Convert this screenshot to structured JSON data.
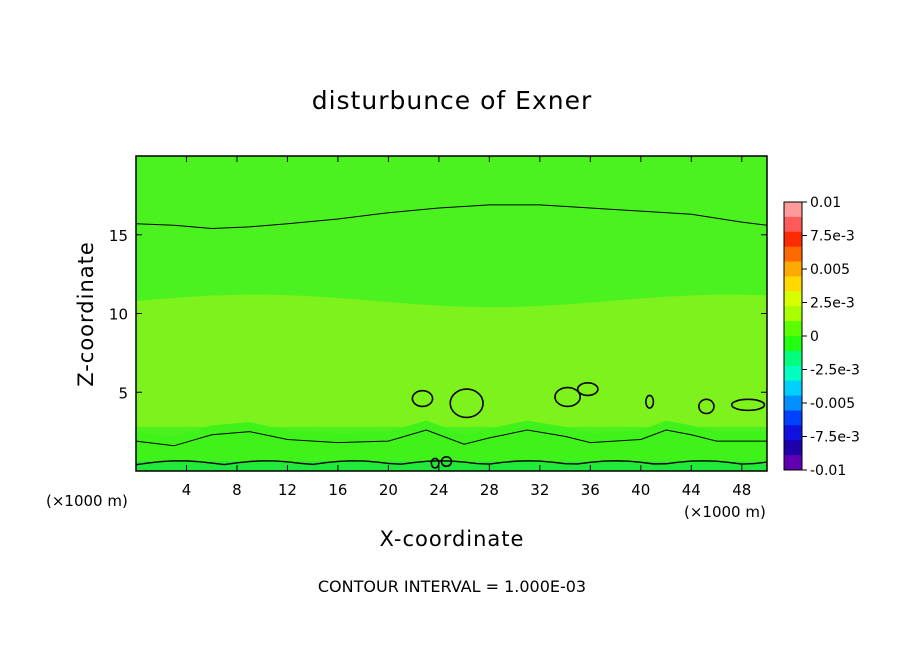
{
  "chart_data": {
    "type": "heatmap",
    "title": "disturbunce of Exner",
    "xlabel": "X-coordinate",
    "ylabel": "Z-coordinate",
    "x_unit_left": "(×1000 m)",
    "x_unit_right": "(×1000 m)",
    "footer": "CONTOUR INTERVAL = 1.000E-03",
    "xlim": [
      0,
      50
    ],
    "ylim": [
      0,
      20
    ],
    "x_ticks": [
      4,
      8,
      12,
      16,
      20,
      24,
      28,
      32,
      36,
      40,
      44,
      48
    ],
    "y_ticks": [
      5,
      10,
      15
    ],
    "colorbar": {
      "range": [
        -0.01,
        0.01
      ],
      "tick_labels": [
        "0.01",
        "7.5e-3",
        "0.005",
        "2.5e-3",
        "0",
        "-2.5e-3",
        "-0.005",
        "-7.5e-3",
        "-0.01"
      ],
      "tick_values": [
        0.01,
        0.0075,
        0.005,
        0.0025,
        0,
        -0.0025,
        -0.005,
        -0.0075,
        -0.01
      ],
      "colors": [
        "#ff9a9a",
        "#ff5a5a",
        "#ff2a00",
        "#ff6a00",
        "#ffaa00",
        "#ffd800",
        "#d8ff00",
        "#a8ff00",
        "#5aff00",
        "#22ff10",
        "#00ff7a",
        "#00ffc0",
        "#00d0ff",
        "#0090ff",
        "#0040ff",
        "#1010e0",
        "#2000a8",
        "#6000b0"
      ]
    },
    "fields": {
      "upper_band_color": "#4cf21f",
      "mid_band_color": "#7df21c",
      "lower_band_color": "#3ff21a",
      "bottom_color": "#22e83a"
    },
    "contours": [
      {
        "level": "upper",
        "points": [
          [
            0,
            15.7
          ],
          [
            3,
            15.6
          ],
          [
            6,
            15.4
          ],
          [
            9,
            15.5
          ],
          [
            12,
            15.7
          ],
          [
            16,
            16.0
          ],
          [
            20,
            16.4
          ],
          [
            24,
            16.7
          ],
          [
            28,
            16.9
          ],
          [
            32,
            16.9
          ],
          [
            36,
            16.7
          ],
          [
            40,
            16.5
          ],
          [
            44,
            16.3
          ],
          [
            48,
            15.8
          ],
          [
            50,
            15.6
          ]
        ]
      },
      {
        "level": "lower",
        "points": [
          [
            0,
            1.9
          ],
          [
            3,
            1.6
          ],
          [
            6,
            2.3
          ],
          [
            9,
            2.5
          ],
          [
            12,
            2.0
          ],
          [
            16,
            1.8
          ],
          [
            20,
            1.9
          ],
          [
            23,
            2.6
          ],
          [
            26,
            1.7
          ],
          [
            28,
            2.1
          ],
          [
            31,
            2.6
          ],
          [
            34,
            2.2
          ],
          [
            36,
            1.8
          ],
          [
            40,
            2.0
          ],
          [
            42,
            2.6
          ],
          [
            44,
            2.3
          ],
          [
            46,
            1.9
          ],
          [
            50,
            1.9
          ]
        ]
      }
    ]
  }
}
